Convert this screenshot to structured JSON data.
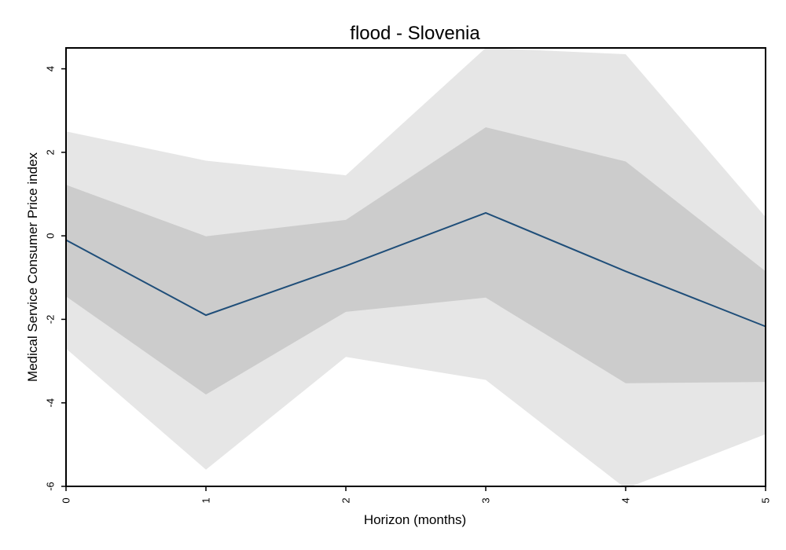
{
  "chart_data": {
    "type": "line",
    "title": "flood - Slovenia",
    "xlabel": "Horizon (months)",
    "ylabel": "Medical Service Consumer Price index",
    "xlim": [
      0,
      5
    ],
    "ylim": [
      -6,
      4.5
    ],
    "x": [
      0,
      1,
      2,
      3,
      4,
      5
    ],
    "x_ticks": [
      0,
      1,
      2,
      3,
      4,
      5
    ],
    "y_ticks": [
      -6,
      -4,
      -2,
      0,
      2,
      4
    ],
    "x_tick_labels": [
      "0",
      "1",
      "2",
      "3",
      "4",
      "5"
    ],
    "y_tick_labels": [
      "-6",
      "-4",
      "-2",
      "0",
      "2",
      "4"
    ],
    "grid": false,
    "legend": "none",
    "series": [
      {
        "values": [
          -0.1,
          -1.9,
          -0.72,
          0.55,
          -0.85,
          -2.17
        ],
        "color": "#1f4e79"
      }
    ],
    "bands": [
      {
        "level": "outer",
        "lower": [
          -2.7,
          -5.6,
          -2.9,
          -3.45,
          -6.05,
          -4.75
        ],
        "upper": [
          2.5,
          1.8,
          1.45,
          4.5,
          4.35,
          0.45
        ],
        "color": "#e6e6e6"
      },
      {
        "level": "inner",
        "lower": [
          -1.45,
          -3.8,
          -1.82,
          -1.48,
          -3.53,
          -3.5
        ],
        "upper": [
          1.22,
          -0.01,
          0.38,
          2.6,
          1.78,
          -0.85
        ],
        "color": "#cccccc"
      }
    ]
  }
}
